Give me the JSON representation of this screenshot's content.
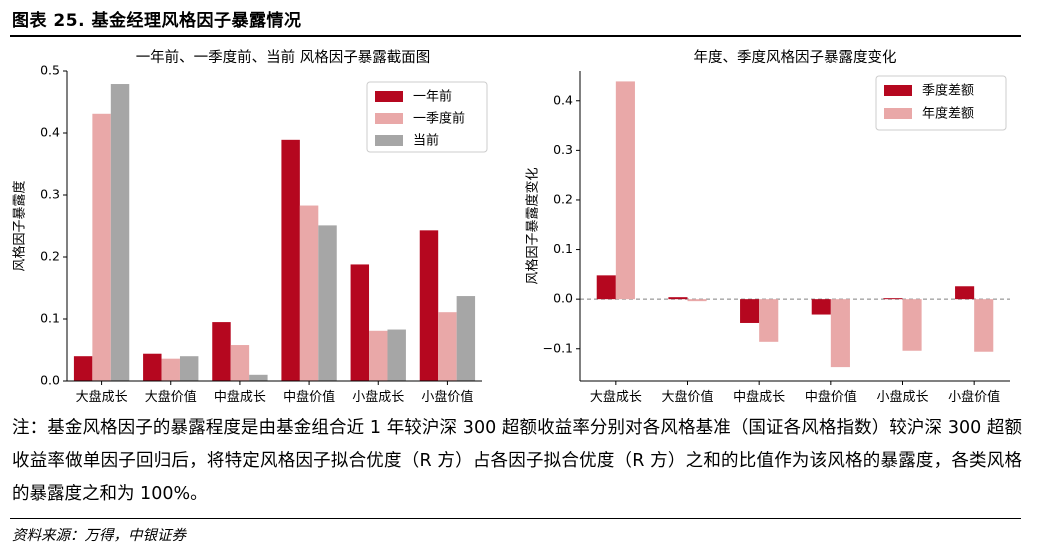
{
  "figure": {
    "title": "图表 25. 基金经理风格因子暴露情况",
    "note": "注：基金风格因子的暴露程度是由基金组合近 1 年较沪深 300 超额收益率分别对各风格基准（国证各风格指数）较沪深 300 超额收益率做单因子回归后，将特定风格因子拟合优度（R 方）占各因子拟合优度（R 方）之和的比值作为该风格的暴露度，各类风格的暴露度之和为 100%。",
    "source": "资料来源：万得，中银证券"
  },
  "chart_data": [
    {
      "type": "bar",
      "title": "一年前、一季度前、当前 风格因子暴露截面图",
      "xlabel": "",
      "ylabel": "风格因子暴露度",
      "ylim": [
        0,
        0.5
      ],
      "yticks": [
        0.0,
        0.1,
        0.2,
        0.3,
        0.4,
        0.5
      ],
      "ytick_labels": [
        "0.0",
        "0.1",
        "0.2",
        "0.3",
        "0.4",
        "0.5"
      ],
      "categories": [
        "大盘成长",
        "大盘价值",
        "中盘成长",
        "中盘价值",
        "小盘成长",
        "小盘价值"
      ],
      "legend_position": "top-right",
      "series": [
        {
          "name": "一年前",
          "color": "#b5071f",
          "values": [
            0.04,
            0.044,
            0.095,
            0.389,
            0.188,
            0.243
          ]
        },
        {
          "name": "一季度前",
          "color": "#e9a8a8",
          "values": [
            0.431,
            0.036,
            0.058,
            0.283,
            0.081,
            0.111
          ]
        },
        {
          "name": "当前",
          "color": "#a6a6a6",
          "values": [
            0.479,
            0.04,
            0.01,
            0.251,
            0.083,
            0.137
          ]
        }
      ]
    },
    {
      "type": "bar",
      "title": "年度、季度风格因子暴露度变化",
      "xlabel": "",
      "ylabel": "风格因子暴露度变化",
      "ylim": [
        -0.165,
        0.46
      ],
      "yticks": [
        -0.1,
        0.0,
        0.1,
        0.2,
        0.3,
        0.4
      ],
      "ytick_labels": [
        "−0.1",
        "0.0",
        "0.1",
        "0.2",
        "0.3",
        "0.4"
      ],
      "categories": [
        "大盘成长",
        "大盘价值",
        "中盘成长",
        "中盘价值",
        "小盘成长",
        "小盘价值"
      ],
      "legend_position": "top-right",
      "zero_line": true,
      "series": [
        {
          "name": "季度差额",
          "color": "#b5071f",
          "values": [
            0.048,
            0.004,
            -0.048,
            -0.031,
            0.002,
            0.026
          ]
        },
        {
          "name": "年度差额",
          "color": "#e9a8a8",
          "values": [
            0.439,
            -0.004,
            -0.086,
            -0.137,
            -0.104,
            -0.106
          ]
        }
      ]
    }
  ]
}
